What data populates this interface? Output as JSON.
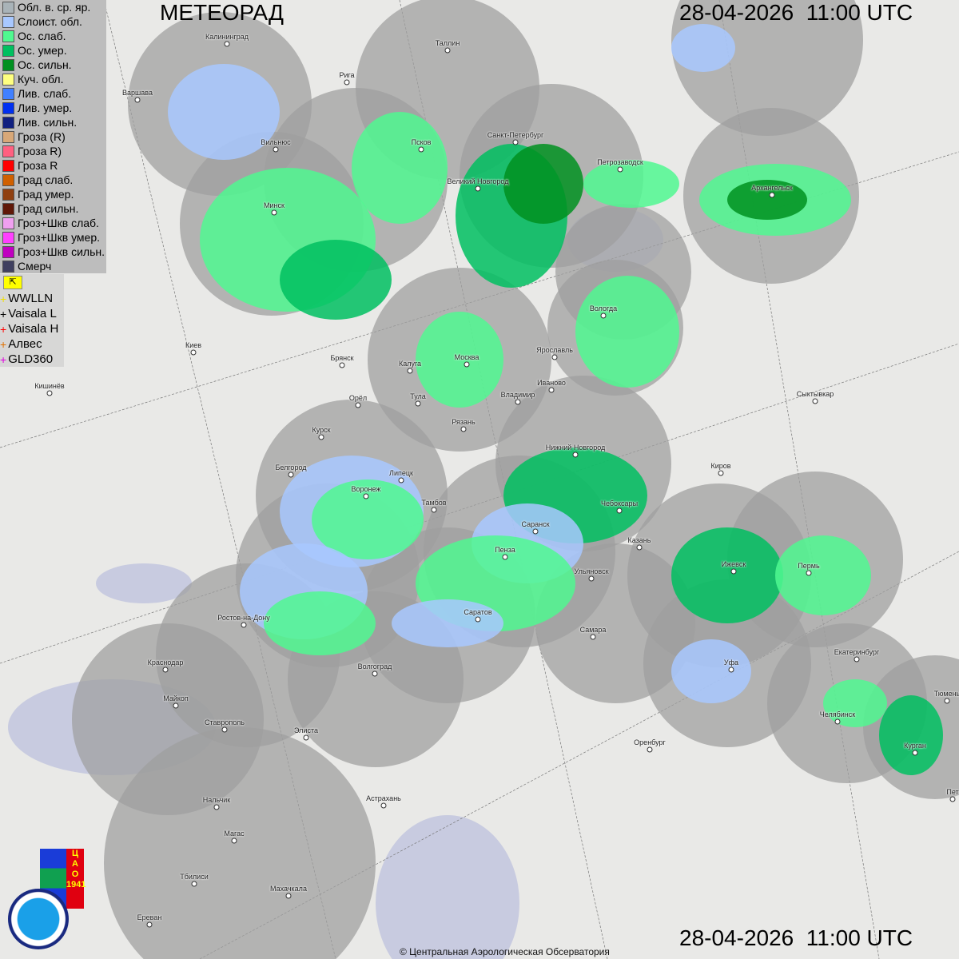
{
  "title": "МЕТЕОРАД",
  "datetime_top": "28-04-2026  11:00 UTC",
  "datetime_bottom": "28-04-2026  11:00 UTC",
  "copyright": "© Центральная Аэрологическая Обсерватория",
  "logos": [
    "ЦАО 1941",
    "РОСГИДРОМЕТ ROSHYDROMET"
  ],
  "legend": [
    {
      "label": "Обл. в. ср. яр.",
      "color": "#a9b3b8"
    },
    {
      "label": "Слоист. обл.",
      "color": "#a8c8ff"
    },
    {
      "label": "Ос. слаб.",
      "color": "#50f890"
    },
    {
      "label": "Ос. умер.",
      "color": "#00c060"
    },
    {
      "label": "Ос. сильн.",
      "color": "#009020"
    },
    {
      "label": "Куч. обл.",
      "color": "#ffff80"
    },
    {
      "label": "Лив. слаб.",
      "color": "#4080ff"
    },
    {
      "label": "Лив. умер.",
      "color": "#0030f0"
    },
    {
      "label": "Лив. сильн.",
      "color": "#102080"
    },
    {
      "label": "Гроза (R)",
      "color": "#d8a878"
    },
    {
      "label": "Гроза R)",
      "color": "#ff6080"
    },
    {
      "label": "Гроза R",
      "color": "#ff0000"
    },
    {
      "label": "Град слаб.",
      "color": "#d06000"
    },
    {
      "label": "Град умер.",
      "color": "#904010"
    },
    {
      "label": "Град сильн.",
      "color": "#601808"
    },
    {
      "label": "Гроз+Шкв слаб.",
      "color": "#f0a0f0"
    },
    {
      "label": "Гроз+Шкв умер.",
      "color": "#ff40ff"
    },
    {
      "label": "Гроз+Шкв сильн.",
      "color": "#c000c0"
    },
    {
      "label": "Смерч",
      "color": "#404060"
    }
  ],
  "lightning_toggle_icon": "cursor-arrow-icon",
  "lightning": [
    {
      "label": "WWLLN",
      "color": "#f0e000"
    },
    {
      "label": "Vaisala L",
      "color": "#000000"
    },
    {
      "label": "Vaisala H",
      "color": "#ff0000"
    },
    {
      "label": "Алвес",
      "color": "#e07000"
    },
    {
      "label": "GLD360",
      "color": "#e000e0"
    }
  ],
  "cities": [
    "Калининград",
    "Таллин",
    "Рига",
    "Варшава",
    "Вильнюс",
    "Псков",
    "Санкт-Петербург",
    "Петрозаводск",
    "Архангельск",
    "Великий Новгород",
    "Минск",
    "Вологда",
    "Ярославль",
    "Москва",
    "Калуга",
    "Брянск",
    "Киев",
    "Кишинёв",
    "Орёл",
    "Тула",
    "Владимир",
    "Иваново",
    "Рязань",
    "Сыктывкар",
    "Курск",
    "Нижний Новгород",
    "Киров",
    "Белгород",
    "Липецк",
    "Воронеж",
    "Тамбов",
    "Чебоксары",
    "Саранск",
    "Казань",
    "Пенза",
    "Ижевск",
    "Пермь",
    "Ульяновск",
    "Ростов-на-Дону",
    "Саратов",
    "Самара",
    "Екатеринбург",
    "Уфа",
    "Краснодар",
    "Волгоград",
    "Тюмень",
    "Майкоп",
    "Челябинск",
    "Ставрополь",
    "Элиста",
    "Оренбург",
    "Курган",
    "Астрахань",
    "Нальчик",
    "Магас",
    "Тбилиси",
    "Махачкала",
    "Ереван",
    "Пет"
  ]
}
